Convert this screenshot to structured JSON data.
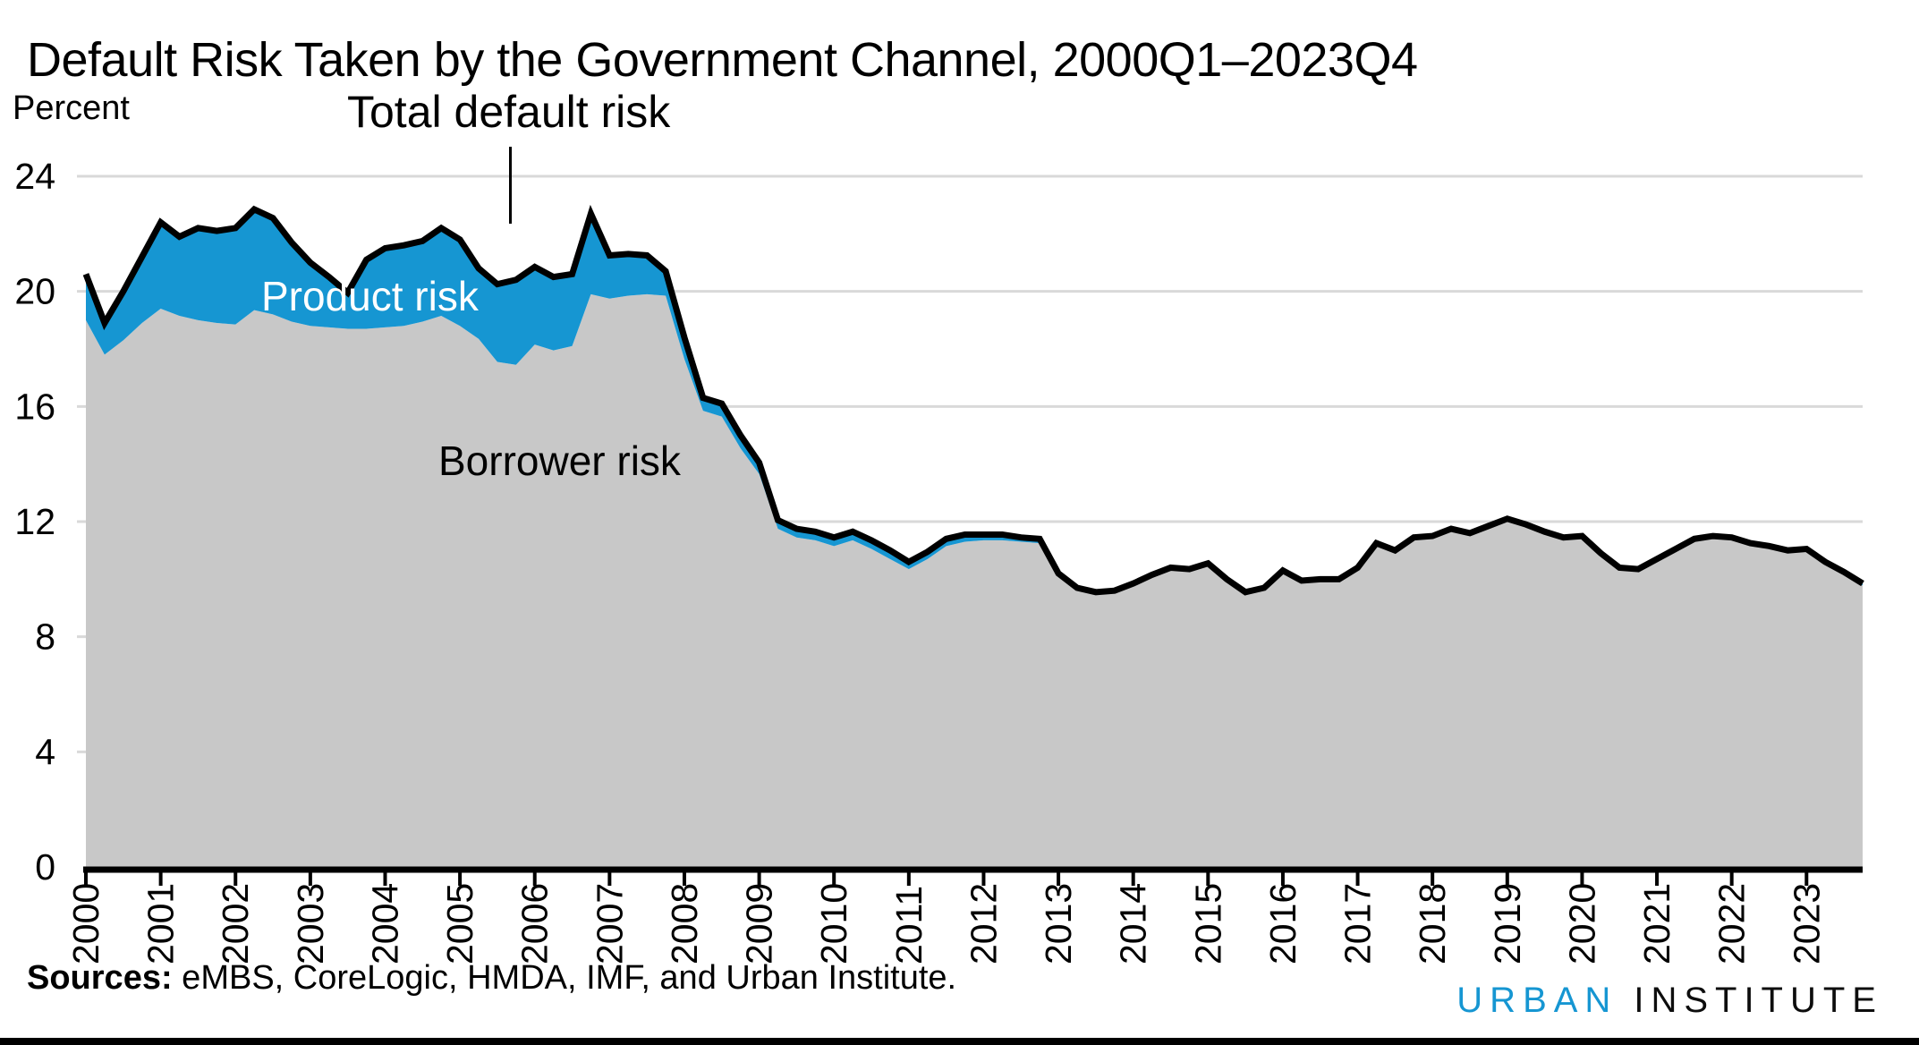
{
  "title": "Default Risk Taken by the Government Channel, 2000Q1–2023Q4",
  "y_axis_label": "Percent",
  "annotations": {
    "total_line_label": "Total default risk",
    "product_area_label": "Product risk",
    "borrower_area_label": "Borrower risk"
  },
  "footer": {
    "sources_prefix": "Sources:",
    "sources_text": " eMBS, CoreLogic, HMDA, IMF, and Urban Institute."
  },
  "logo": {
    "word1": "URBAN",
    "word2": "INSTITUTE"
  },
  "colors": {
    "product_blue": "#1696d2",
    "borrower_gray": "#c8c8c8",
    "total_line": "#000000",
    "gridline": "#d9d9d9",
    "axis": "#000000",
    "logo_blue": "#1696d2",
    "logo_dark": "#0d0d0d"
  },
  "chart_data": {
    "type": "area",
    "stacked": true,
    "title": "Default Risk Taken by the Government Channel, 2000Q1–2023Q4",
    "ylabel": "Percent",
    "ylim": [
      0,
      24
    ],
    "y_ticks": [
      0,
      4,
      8,
      12,
      16,
      20,
      24
    ],
    "x_start": "2000Q1",
    "x_end": "2023Q4",
    "x_tick_years": [
      "2000",
      "2001",
      "2002",
      "2003",
      "2004",
      "2005",
      "2006",
      "2007",
      "2008",
      "2009",
      "2010",
      "2011",
      "2012",
      "2013",
      "2014",
      "2015",
      "2016",
      "2017",
      "2018",
      "2019",
      "2020",
      "2021",
      "2022",
      "2023"
    ],
    "grid": true,
    "legend_position": "in-plot text labels",
    "series": [
      {
        "name": "Total default risk",
        "style": "black line, stacked-area top edge",
        "values": [
          20.6,
          18.9,
          20.0,
          21.2,
          22.4,
          21.9,
          22.2,
          22.1,
          22.2,
          22.85,
          22.55,
          21.7,
          21.0,
          20.5,
          19.95,
          21.1,
          21.5,
          21.6,
          21.75,
          22.2,
          21.8,
          20.8,
          20.25,
          20.4,
          20.85,
          20.5,
          20.6,
          22.7,
          21.25,
          21.3,
          21.25,
          20.7,
          18.4,
          16.3,
          16.1,
          15.0,
          14.05,
          12.05,
          11.75,
          11.65,
          11.45,
          11.65,
          11.35,
          11.0,
          10.6,
          10.95,
          11.4,
          11.55,
          11.55,
          11.55,
          11.45,
          11.4,
          10.2,
          9.7,
          9.55,
          9.6,
          9.85,
          10.15,
          10.4,
          10.35,
          10.55,
          10.0,
          9.55,
          9.7,
          10.3,
          9.95,
          10.0,
          10.0,
          10.4,
          11.25,
          11.0,
          11.45,
          11.5,
          11.75,
          11.6,
          11.85,
          12.1,
          11.9,
          11.65,
          11.45,
          11.5,
          10.9,
          10.4,
          10.35,
          10.7,
          11.05,
          11.4,
          11.5,
          11.45,
          11.25,
          11.15,
          11.0,
          11.05,
          10.6,
          10.25,
          9.85
        ]
      },
      {
        "name": "Borrower risk",
        "style": "gray area from 0",
        "values": [
          19.0,
          17.8,
          18.3,
          18.9,
          19.4,
          19.15,
          19.0,
          18.9,
          18.85,
          19.35,
          19.2,
          18.95,
          18.8,
          18.75,
          18.7,
          18.7,
          18.75,
          18.8,
          18.95,
          19.15,
          18.8,
          18.35,
          17.55,
          17.45,
          18.15,
          17.95,
          18.1,
          19.9,
          19.75,
          19.85,
          19.9,
          19.85,
          17.65,
          15.85,
          15.65,
          14.55,
          13.65,
          11.75,
          11.45,
          11.35,
          11.15,
          11.35,
          11.05,
          10.7,
          10.35,
          10.7,
          11.15,
          11.3,
          11.35,
          11.35,
          11.3,
          11.25,
          10.1,
          9.6,
          9.45,
          9.5,
          9.78,
          10.08,
          10.33,
          10.28,
          10.48,
          9.93,
          9.48,
          9.63,
          10.23,
          9.88,
          9.93,
          9.93,
          10.33,
          11.18,
          10.93,
          11.38,
          11.43,
          11.68,
          11.53,
          11.78,
          12.03,
          11.83,
          11.58,
          11.38,
          11.43,
          10.83,
          10.33,
          10.28,
          10.63,
          10.98,
          11.33,
          11.43,
          11.38,
          11.18,
          11.08,
          10.93,
          10.98,
          10.53,
          10.18,
          9.78
        ]
      },
      {
        "name": "Product risk",
        "style": "blue band between Borrower risk and Total default risk (total minus borrower)",
        "values": "derived: total - borrower"
      }
    ]
  }
}
